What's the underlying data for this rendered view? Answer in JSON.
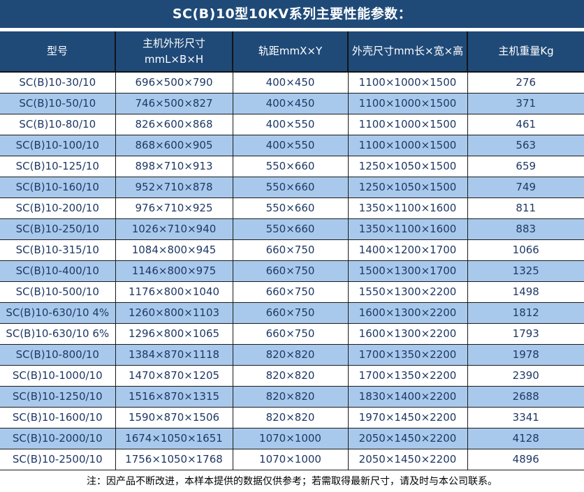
{
  "title": "SC(B)10型10KV系列主要性能参数：",
  "colors": {
    "header_bg": "#1F4A78",
    "stripe_bg": "#A9C9EC",
    "cell_text": "#1F3864",
    "header_text": "#FFFFFF",
    "border": "#1A1A1A"
  },
  "table": {
    "headers": [
      "型号",
      "主机外形尺寸\nmmL×B×H",
      "轨距mmX×Y",
      "外壳尺寸mm长×宽×高",
      "主机重量Kg"
    ],
    "rows": [
      [
        "SC(B)10-30/10",
        "696×500×790",
        "400×450",
        "1100×1000×1500",
        "276"
      ],
      [
        "SC(B)10-50/10",
        "746×500×827",
        "400×450",
        "1100×1000×1500",
        "371"
      ],
      [
        "SC(B)10-80/10",
        "826×600×868",
        "400×550",
        "1100×1000×1500",
        "461"
      ],
      [
        "SC(B)10-100/10",
        "868×600×905",
        "400×550",
        "1100×1000×1500",
        "563"
      ],
      [
        "SC(B)10-125/10",
        "898×710×913",
        "550×660",
        "1250×1050×1500",
        "659"
      ],
      [
        "SC(B)10-160/10",
        "952×710×878",
        "550×660",
        "1250×1050×1500",
        "749"
      ],
      [
        "SC(B)10-200/10",
        "976×710×925",
        "550×660",
        "1350×1100×1600",
        "811"
      ],
      [
        "SC(B)10-250/10",
        "1026×710×940",
        "550×660",
        "1350×1100×1600",
        "883"
      ],
      [
        "SC(B)10-315/10",
        "1084×800×945",
        "660×750",
        "1400×1200×1700",
        "1066"
      ],
      [
        "SC(B)10-400/10",
        "1146×800×975",
        "660×750",
        "1500×1300×1700",
        "1325"
      ],
      [
        "SC(B)10-500/10",
        "1176×800×1040",
        "660×750",
        "1550×1300×2200",
        "1498"
      ],
      [
        "SC(B)10-630/10 4%",
        "1260×800×1103",
        "660×750",
        "1600×1300×2200",
        "1812"
      ],
      [
        "SC(B)10-630/10 6%",
        "1296×800×1065",
        "660×750",
        "1600×1300×2200",
        "1793"
      ],
      [
        "SC(B)10-800/10",
        "1384×870×1118",
        "820×820",
        "1700×1350×2200",
        "1978"
      ],
      [
        "SC(B)10-1000/10",
        "1470×870×1205",
        "820×820",
        "1700×1350×2200",
        "2390"
      ],
      [
        "SC(B)10-1250/10",
        "1516×870×1315",
        "820×820",
        "1830×1400×2200",
        "2688"
      ],
      [
        "SC(B)10-1600/10",
        "1590×870×1506",
        "820×820",
        "1970×1450×2200",
        "3341"
      ],
      [
        "SC(B)10-2000/10",
        "1674×1050×1651",
        "1070×1000",
        "2050×1450×2200",
        "4128"
      ],
      [
        "SC(B)10-2500/10",
        "1756×1050×1768",
        "1070×1000",
        "2050×1450×2200",
        "4896"
      ]
    ],
    "footer_note": "注：因产品不断改进，本样本提供的数据仅供参考；若需取得最新尺寸，请及时与本公司联系。"
  }
}
